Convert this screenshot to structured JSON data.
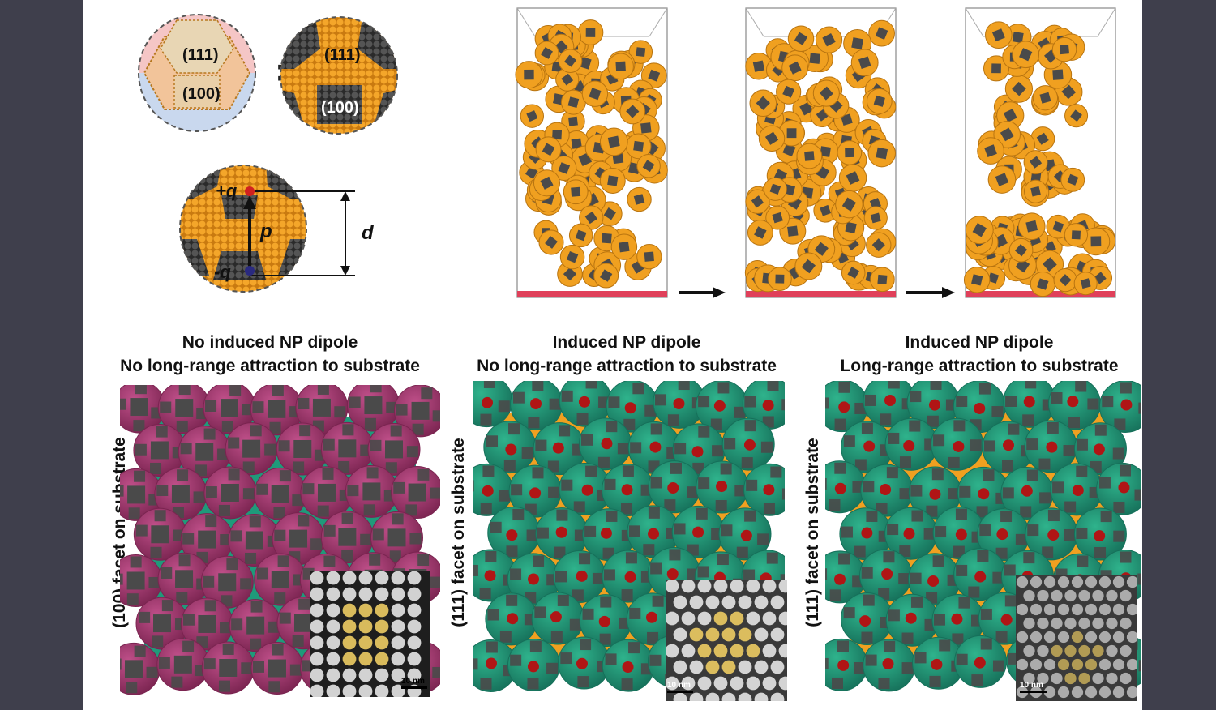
{
  "top_left": {
    "facet_111": "(111)",
    "facet_100": "(100)",
    "equals": "=",
    "charge_pos": "+q",
    "charge_neg": "-q",
    "dipole": "p",
    "distance": "d"
  },
  "panels": [
    {
      "line1": "No induced NP dipole",
      "line2": "No long-range attraction to substrate",
      "side": "(100) facet on substrate",
      "scale": "10 nm"
    },
    {
      "line1": "Induced NP dipole",
      "line2": "No long-range attraction to substrate",
      "side": "(111) facet on substrate",
      "scale": "10 nm"
    },
    {
      "line1": "Induced NP dipole",
      "line2": "Long-range attraction to substrate",
      "side": "(111) facet on substrate",
      "scale": "10 nm"
    }
  ],
  "colors": {
    "orange": "#f0a020",
    "gray": "#4a4a4a",
    "green": "#1f9a7a",
    "magenta": "#a03a6e",
    "red": "#b01515",
    "substrate": "#e0405a"
  }
}
